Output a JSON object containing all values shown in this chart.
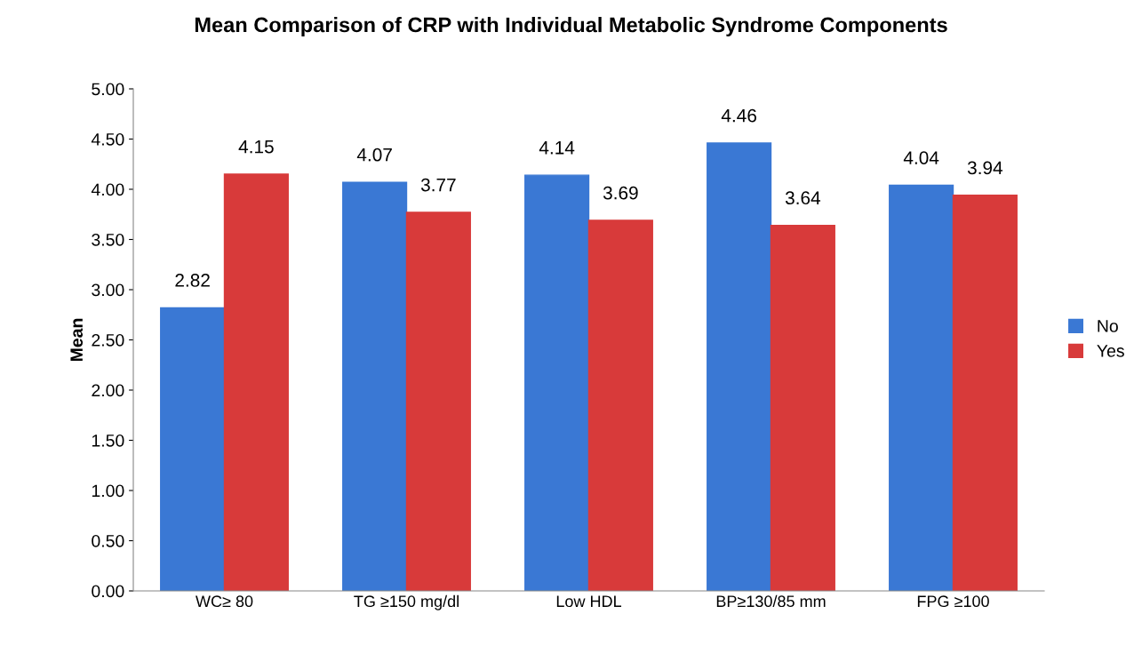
{
  "chart_data": {
    "type": "bar",
    "title": "Mean Comparison of CRP with Individual Metabolic Syndrome Components",
    "ylabel": "Mean",
    "categories": [
      "WC≥ 80",
      "TG ≥150 mg/dl",
      "Low HDL",
      "BP≥130/85 mm",
      "FPG ≥100"
    ],
    "series": [
      {
        "name": "No",
        "color": "#3a78d4",
        "values": [
          2.82,
          4.07,
          4.14,
          4.46,
          4.04
        ]
      },
      {
        "name": "Yes",
        "color": "#d83a3a",
        "values": [
          4.15,
          3.77,
          3.69,
          3.64,
          3.94
        ]
      }
    ],
    "ylim": [
      0,
      5
    ],
    "yticks": [
      {
        "value": 0,
        "label": "0.00"
      },
      {
        "value": 0.5,
        "label": "0.50"
      },
      {
        "value": 1,
        "label": "1.00"
      },
      {
        "value": 1.5,
        "label": "1.50"
      },
      {
        "value": 2,
        "label": "2.00"
      },
      {
        "value": 2.5,
        "label": "2.50"
      },
      {
        "value": 3,
        "label": "3.00"
      },
      {
        "value": 3.5,
        "label": "3.50"
      },
      {
        "value": 4,
        "label": "4.00"
      },
      {
        "value": 4.5,
        "label": "4.50"
      },
      {
        "value": 5,
        "label": "5.00"
      }
    ],
    "data_labels": true,
    "legend": "right",
    "grid": false
  }
}
